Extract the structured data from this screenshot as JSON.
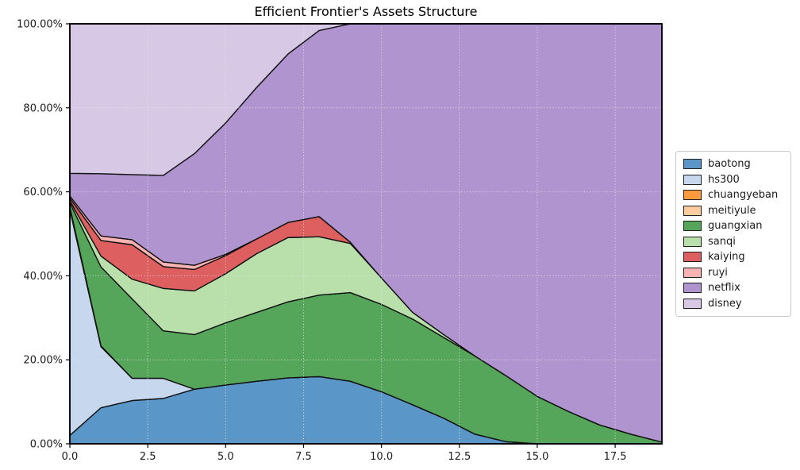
{
  "figure": {
    "background": "#ffffff",
    "frame_color": "#000000",
    "grid_color": "#e7e7e7",
    "edge_color": "#121212"
  },
  "chart_data": {
    "type": "area",
    "stacked": true,
    "title": "Efficient Frontier's Assets Structure",
    "xlabel": "",
    "ylabel": "",
    "xlim": [
      0,
      19
    ],
    "ylim": [
      0,
      100
    ],
    "grid": "dotted, both axes",
    "legend_position": "outside center-right",
    "x": [
      0,
      1,
      2,
      3,
      4,
      5,
      6,
      7,
      8,
      9,
      10,
      11,
      12,
      13,
      14,
      15,
      16,
      17,
      18,
      19
    ],
    "x_ticks": [
      0,
      2.5,
      5,
      7.5,
      10,
      12.5,
      15,
      17.5
    ],
    "x_tick_labels": [
      "0.0",
      "2.5",
      "5.0",
      "7.5",
      "10.0",
      "12.5",
      "15.0",
      "17.5"
    ],
    "y_ticks": [
      0,
      20,
      40,
      60,
      80,
      100
    ],
    "y_tick_labels": [
      "0.00%",
      "20.00%",
      "40.00%",
      "60.00%",
      "80.00%",
      "100.00%"
    ],
    "units": "percent of portfolio",
    "series": [
      {
        "name": "baotong",
        "color": "#5a96c7",
        "values": [
          2.0,
          8.6,
          10.3,
          10.8,
          13.0,
          14.0,
          14.9,
          15.7,
          16.0,
          14.9,
          12.4,
          9.3,
          6.1,
          2.3,
          0.5,
          0,
          0,
          0,
          0,
          0
        ]
      },
      {
        "name": "hs300",
        "color": "#c6d7ee",
        "values": [
          53.8,
          14.5,
          5.3,
          4.8,
          0,
          0,
          0,
          0,
          0,
          0,
          0,
          0,
          0,
          0,
          0,
          0,
          0,
          0,
          0,
          0
        ]
      },
      {
        "name": "chuangyeban",
        "color": "#fd9a3d",
        "values": [
          0.3,
          0.1,
          0,
          0,
          0,
          0,
          0,
          0,
          0,
          0,
          0,
          0,
          0,
          0,
          0,
          0,
          0,
          0,
          0,
          0
        ]
      },
      {
        "name": "meitiyule",
        "color": "#fdcc9e",
        "values": [
          0.3,
          0.1,
          0,
          0,
          0,
          0,
          0,
          0,
          0,
          0,
          0,
          0,
          0,
          0,
          0,
          0,
          0,
          0,
          0,
          0
        ]
      },
      {
        "name": "guangxian",
        "color": "#55a55a",
        "values": [
          1.0,
          18.8,
          18.9,
          11.3,
          13.0,
          14.8,
          16.4,
          18.1,
          19.4,
          21.1,
          20.8,
          20.4,
          19.2,
          18.6,
          15.7,
          11.3,
          7.7,
          4.5,
          2.3,
          0.4
        ]
      },
      {
        "name": "sanqi",
        "color": "#b9e0ab",
        "values": [
          0.5,
          2.6,
          4.7,
          10.1,
          10.4,
          11.7,
          14.0,
          15.3,
          13.9,
          11.7,
          6.3,
          1.6,
          0.7,
          0,
          0,
          0,
          0,
          0,
          0,
          0
        ]
      },
      {
        "name": "kaiying",
        "color": "#dd5f60",
        "values": [
          0.6,
          3.7,
          8.2,
          5.2,
          5.1,
          4.3,
          3.5,
          3.6,
          4.8,
          0.3,
          0,
          0,
          0,
          0,
          0,
          0,
          0,
          0,
          0,
          0
        ]
      },
      {
        "name": "ruyi",
        "color": "#f9b3b2",
        "values": [
          0.5,
          1.1,
          1.2,
          1.1,
          1.0,
          0.3,
          0,
          0,
          0,
          0,
          0,
          0,
          0,
          0,
          0,
          0,
          0,
          0,
          0,
          0
        ]
      },
      {
        "name": "netflix",
        "color": "#b094cf",
        "values": [
          5.4,
          14.8,
          15.5,
          20.6,
          26.6,
          31.3,
          36.1,
          40.1,
          44.3,
          52.0,
          60.5,
          68.7,
          74.0,
          79.1,
          83.8,
          88.7,
          92.3,
          95.5,
          97.7,
          99.6
        ]
      },
      {
        "name": "disney",
        "color": "#d7c9e5",
        "values": [
          35.6,
          35.7,
          35.9,
          36.1,
          30.9,
          23.6,
          15.1,
          7.2,
          1.6,
          0,
          0,
          0,
          0,
          0,
          0,
          0,
          0,
          0,
          0,
          0
        ]
      }
    ]
  }
}
